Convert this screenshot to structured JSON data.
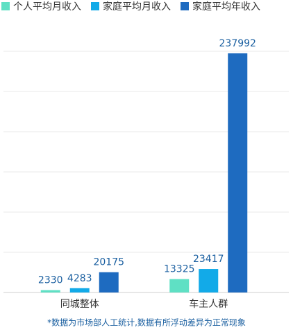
{
  "chart_data": {
    "type": "bar",
    "categories": [
      "同城整体",
      "车主人群"
    ],
    "series": [
      {
        "name": "个人平均月收入",
        "color": "#5fe0c4",
        "values": [
          2330,
          13325
        ]
      },
      {
        "name": "家庭平均月收入",
        "color": "#12aae8",
        "values": [
          4283,
          23417
        ]
      },
      {
        "name": "家庭平均年收入",
        "color": "#1e6bc0",
        "values": [
          20175,
          237992
        ]
      }
    ],
    "ylim": [
      0,
      240000
    ],
    "yticks": [
      0,
      40000,
      80000,
      120000,
      160000,
      200000,
      240000
    ],
    "grid": true,
    "footnote": "*数据为市场部人工统计,数据有所浮动差异为正常现象"
  }
}
